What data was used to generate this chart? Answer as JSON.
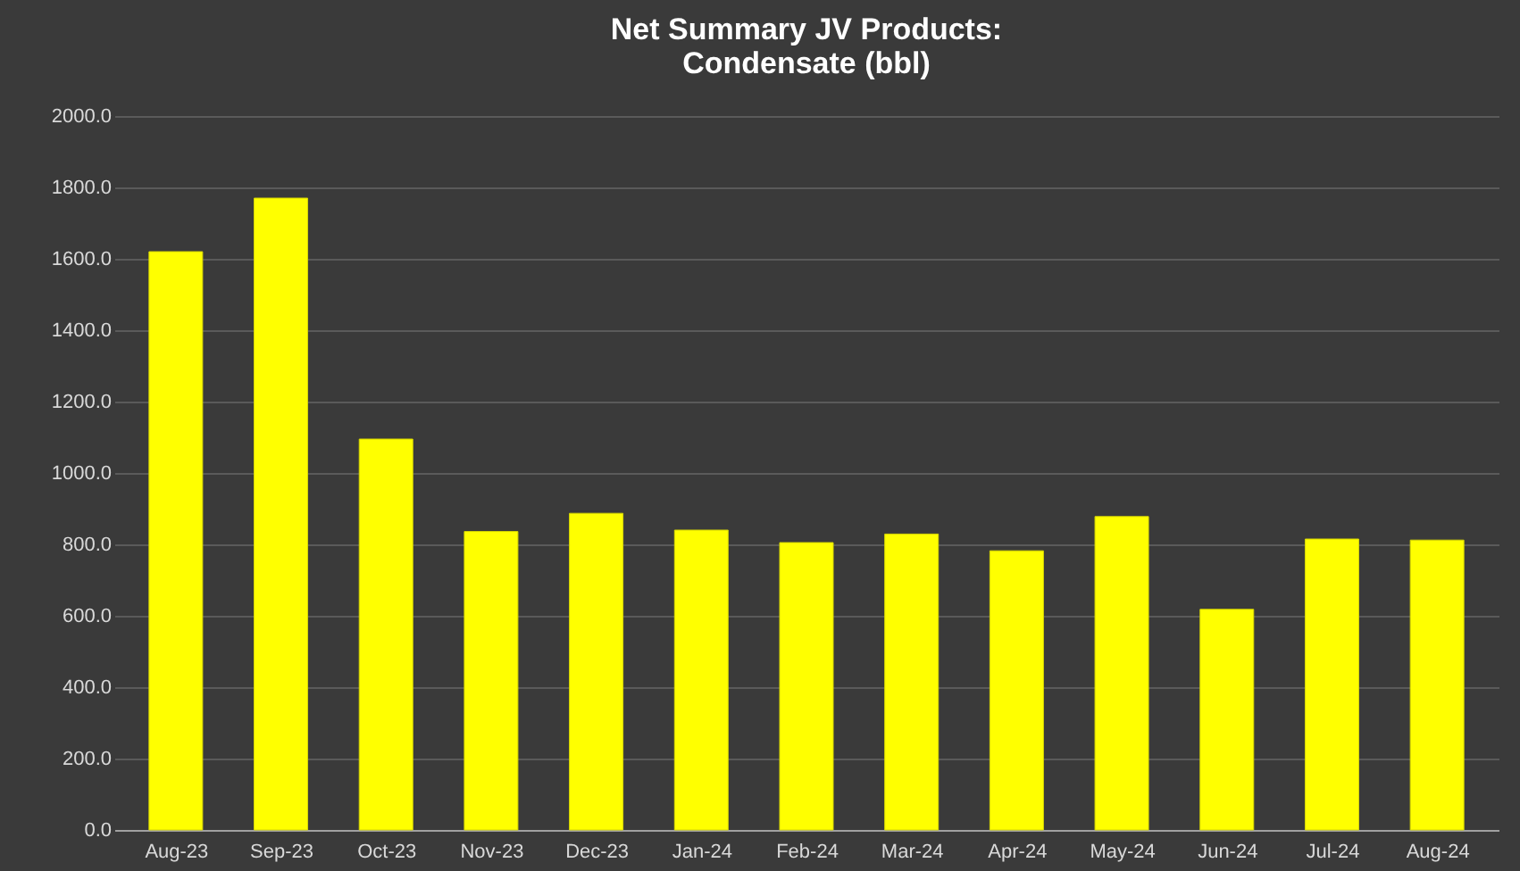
{
  "chart_data": {
    "type": "bar",
    "title": [
      "Net Summary JV Products:",
      "Condensate (bbl)"
    ],
    "categories": [
      "Aug-23",
      "Sep-23",
      "Oct-23",
      "Nov-23",
      "Dec-23",
      "Jan-24",
      "Feb-24",
      "Mar-24",
      "Apr-24",
      "May-24",
      "Jun-24",
      "Jul-24",
      "Aug-24"
    ],
    "values": [
      1620,
      1770,
      1095,
      836,
      887,
      840,
      805,
      829,
      782,
      878,
      618,
      815,
      812
    ],
    "color": "#ffff00",
    "ylim": [
      0,
      2000
    ],
    "yticks": [
      {
        "value": 0,
        "label": "0.0"
      },
      {
        "value": 200,
        "label": "200.0"
      },
      {
        "value": 400,
        "label": "400.0"
      },
      {
        "value": 600,
        "label": "600.0"
      },
      {
        "value": 800,
        "label": "800.0"
      },
      {
        "value": 1000,
        "label": "1000.0"
      },
      {
        "value": 1200,
        "label": "1200.0"
      },
      {
        "value": 1400,
        "label": "1400.0"
      },
      {
        "value": 1600,
        "label": "1600.0"
      },
      {
        "value": 1800,
        "label": "1800.0"
      },
      {
        "value": 2000,
        "label": "2000.0"
      }
    ],
    "grid": "y"
  }
}
